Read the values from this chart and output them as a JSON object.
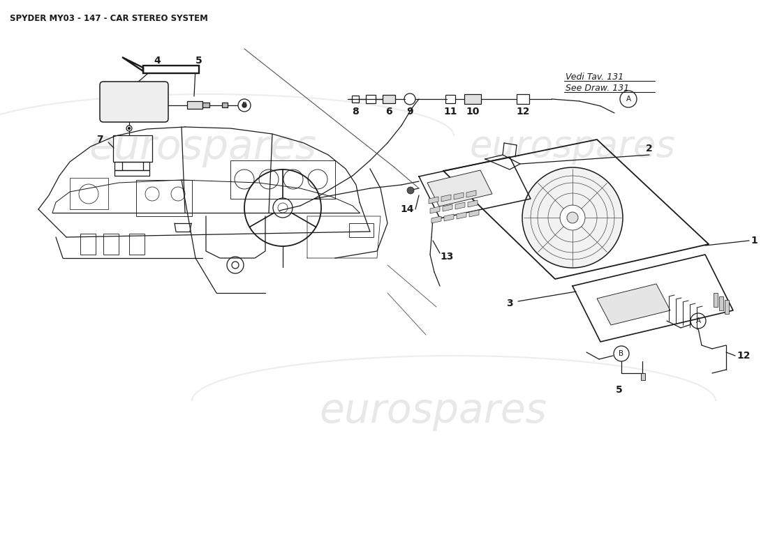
{
  "title": "SPYDER MY03 - 147 - CAR STEREO SYSTEM",
  "title_fontsize": 8.5,
  "title_fontweight": "bold",
  "background_color": "#ffffff",
  "watermark1_text": "eurospares",
  "watermark2_text": "eurospares",
  "watermark3_text": "eurospares",
  "watermark_color": "#cccccc",
  "watermark_alpha": 0.45,
  "vedi_text1": "Vedi Tav. 131",
  "vedi_text2": "See Draw. 131",
  "line_color": "#1a1a1a",
  "line_width": 0.9,
  "part_label_fontsize": 10,
  "note_fontsize": 9
}
